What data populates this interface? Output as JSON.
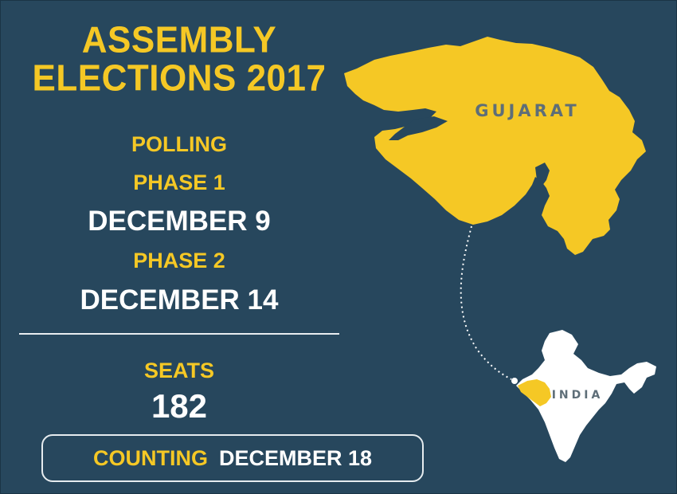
{
  "title": {
    "line1": "ASSEMBLY",
    "line2": "ELECTIONS 2017"
  },
  "polling": {
    "label": "POLLING",
    "phase1_label": "PHASE 1",
    "phase1_date": "DECEMBER 9",
    "phase2_label": "PHASE 2",
    "phase2_date": "DECEMBER 14"
  },
  "seats": {
    "label": "SEATS",
    "value": "182"
  },
  "counting": {
    "label": "COUNTING",
    "date": "DECEMBER 18"
  },
  "map": {
    "state_label": "GUJARAT",
    "country_label": "INDIA",
    "highlight_color": "#f5c825",
    "country_color": "#ffffff",
    "background_color": "#27475d"
  }
}
